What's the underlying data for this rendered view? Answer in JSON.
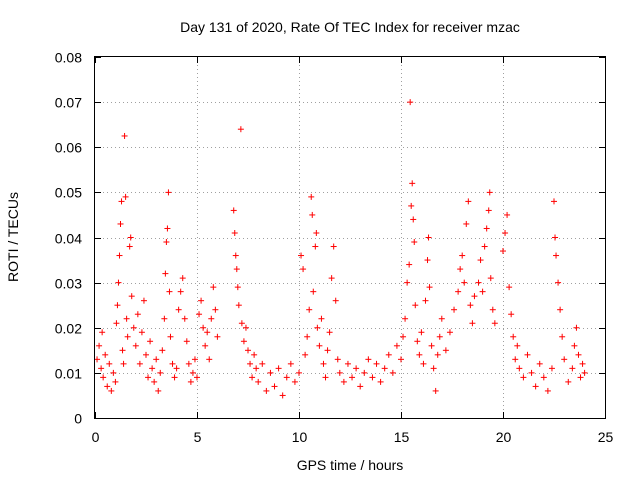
{
  "chart_data": {
    "type": "scatter",
    "title": "Day 131 of 2020, Rate Of TEC Index for receiver mzac",
    "xlabel": "GPS time / hours",
    "ylabel": "ROTI / TECUs",
    "xlim": [
      0,
      25
    ],
    "ylim": [
      0,
      0.08
    ],
    "xticks": [
      "0",
      "5",
      "10",
      "15",
      "20",
      "25"
    ],
    "yticks": [
      "0",
      "0.01",
      "0.02",
      "0.03",
      "0.04",
      "0.05",
      "0.06",
      "0.07",
      "0.08"
    ],
    "grid": true,
    "marker": "+",
    "color": "#ff0000",
    "series": [
      {
        "name": "ROTI",
        "points": [
          [
            0.1,
            0.013
          ],
          [
            0.2,
            0.016
          ],
          [
            0.3,
            0.011
          ],
          [
            0.35,
            0.019
          ],
          [
            0.4,
            0.009
          ],
          [
            0.5,
            0.014
          ],
          [
            0.6,
            0.007
          ],
          [
            0.7,
            0.012
          ],
          [
            0.8,
            0.006
          ],
          [
            0.9,
            0.01
          ],
          [
            1.0,
            0.008
          ],
          [
            1.05,
            0.021
          ],
          [
            1.1,
            0.025
          ],
          [
            1.15,
            0.03
          ],
          [
            1.2,
            0.036
          ],
          [
            1.25,
            0.043
          ],
          [
            1.3,
            0.048
          ],
          [
            1.35,
            0.015
          ],
          [
            1.4,
            0.012
          ],
          [
            1.45,
            0.0625
          ],
          [
            1.5,
            0.049
          ],
          [
            1.55,
            0.022
          ],
          [
            1.6,
            0.018
          ],
          [
            1.7,
            0.038
          ],
          [
            1.75,
            0.04
          ],
          [
            1.8,
            0.027
          ],
          [
            1.9,
            0.02
          ],
          [
            2.0,
            0.016
          ],
          [
            2.1,
            0.023
          ],
          [
            2.2,
            0.012
          ],
          [
            2.3,
            0.019
          ],
          [
            2.4,
            0.026
          ],
          [
            2.5,
            0.014
          ],
          [
            2.6,
            0.009
          ],
          [
            2.7,
            0.017
          ],
          [
            2.8,
            0.011
          ],
          [
            2.9,
            0.008
          ],
          [
            3.0,
            0.013
          ],
          [
            3.1,
            0.006
          ],
          [
            3.2,
            0.01
          ],
          [
            3.3,
            0.015
          ],
          [
            3.4,
            0.022
          ],
          [
            3.45,
            0.032
          ],
          [
            3.5,
            0.039
          ],
          [
            3.55,
            0.042
          ],
          [
            3.6,
            0.05
          ],
          [
            3.65,
            0.028
          ],
          [
            3.7,
            0.018
          ],
          [
            3.8,
            0.012
          ],
          [
            3.9,
            0.009
          ],
          [
            4.0,
            0.011
          ],
          [
            4.1,
            0.024
          ],
          [
            4.2,
            0.028
          ],
          [
            4.3,
            0.031
          ],
          [
            4.4,
            0.022
          ],
          [
            4.5,
            0.017
          ],
          [
            4.6,
            0.012
          ],
          [
            4.7,
            0.008
          ],
          [
            4.8,
            0.01
          ],
          [
            4.9,
            0.013
          ],
          [
            5.0,
            0.009
          ],
          [
            5.1,
            0.023
          ],
          [
            5.2,
            0.026
          ],
          [
            5.3,
            0.02
          ],
          [
            5.4,
            0.016
          ],
          [
            5.5,
            0.019
          ],
          [
            5.6,
            0.013
          ],
          [
            5.7,
            0.022
          ],
          [
            5.8,
            0.029
          ],
          [
            5.9,
            0.024
          ],
          [
            6.0,
            0.018
          ],
          [
            6.8,
            0.046
          ],
          [
            6.85,
            0.041
          ],
          [
            6.9,
            0.036
          ],
          [
            6.95,
            0.033
          ],
          [
            7.0,
            0.029
          ],
          [
            7.05,
            0.025
          ],
          [
            7.15,
            0.064
          ],
          [
            7.2,
            0.021
          ],
          [
            7.3,
            0.017
          ],
          [
            7.4,
            0.02
          ],
          [
            7.5,
            0.015
          ],
          [
            7.6,
            0.012
          ],
          [
            7.7,
            0.009
          ],
          [
            7.8,
            0.014
          ],
          [
            7.9,
            0.011
          ],
          [
            8.0,
            0.008
          ],
          [
            8.2,
            0.012
          ],
          [
            8.4,
            0.006
          ],
          [
            8.6,
            0.01
          ],
          [
            8.8,
            0.007
          ],
          [
            9.0,
            0.011
          ],
          [
            9.2,
            0.005
          ],
          [
            9.4,
            0.009
          ],
          [
            9.6,
            0.012
          ],
          [
            9.8,
            0.008
          ],
          [
            10.0,
            0.01
          ],
          [
            10.1,
            0.036
          ],
          [
            10.2,
            0.033
          ],
          [
            10.3,
            0.014
          ],
          [
            10.4,
            0.018
          ],
          [
            10.5,
            0.024
          ],
          [
            10.6,
            0.049
          ],
          [
            10.65,
            0.045
          ],
          [
            10.7,
            0.028
          ],
          [
            10.8,
            0.038
          ],
          [
            10.85,
            0.041
          ],
          [
            10.9,
            0.02
          ],
          [
            11.0,
            0.016
          ],
          [
            11.1,
            0.022
          ],
          [
            11.2,
            0.012
          ],
          [
            11.3,
            0.009
          ],
          [
            11.4,
            0.015
          ],
          [
            11.5,
            0.019
          ],
          [
            11.6,
            0.031
          ],
          [
            11.7,
            0.038
          ],
          [
            11.8,
            0.026
          ],
          [
            11.9,
            0.013
          ],
          [
            12.0,
            0.01
          ],
          [
            12.2,
            0.008
          ],
          [
            12.4,
            0.012
          ],
          [
            12.6,
            0.009
          ],
          [
            12.8,
            0.011
          ],
          [
            13.0,
            0.007
          ],
          [
            13.2,
            0.01
          ],
          [
            13.4,
            0.013
          ],
          [
            13.6,
            0.009
          ],
          [
            13.8,
            0.012
          ],
          [
            14.0,
            0.008
          ],
          [
            14.2,
            0.011
          ],
          [
            14.4,
            0.014
          ],
          [
            14.6,
            0.01
          ],
          [
            14.8,
            0.016
          ],
          [
            15.0,
            0.013
          ],
          [
            15.1,
            0.018
          ],
          [
            15.2,
            0.022
          ],
          [
            15.3,
            0.03
          ],
          [
            15.4,
            0.034
          ],
          [
            15.45,
            0.07
          ],
          [
            15.5,
            0.047
          ],
          [
            15.55,
            0.052
          ],
          [
            15.6,
            0.044
          ],
          [
            15.65,
            0.039
          ],
          [
            15.7,
            0.025
          ],
          [
            15.8,
            0.017
          ],
          [
            15.9,
            0.014
          ],
          [
            16.0,
            0.019
          ],
          [
            16.1,
            0.012
          ],
          [
            16.2,
            0.026
          ],
          [
            16.3,
            0.035
          ],
          [
            16.35,
            0.04
          ],
          [
            16.4,
            0.029
          ],
          [
            16.5,
            0.016
          ],
          [
            16.6,
            0.011
          ],
          [
            16.7,
            0.006
          ],
          [
            16.8,
            0.014
          ],
          [
            16.9,
            0.018
          ],
          [
            17.0,
            0.022
          ],
          [
            17.2,
            0.015
          ],
          [
            17.4,
            0.019
          ],
          [
            17.6,
            0.024
          ],
          [
            17.8,
            0.028
          ],
          [
            17.9,
            0.033
          ],
          [
            18.0,
            0.036
          ],
          [
            18.1,
            0.03
          ],
          [
            18.2,
            0.043
          ],
          [
            18.3,
            0.048
          ],
          [
            18.4,
            0.025
          ],
          [
            18.5,
            0.021
          ],
          [
            18.6,
            0.027
          ],
          [
            18.8,
            0.03
          ],
          [
            18.9,
            0.035
          ],
          [
            19.0,
            0.028
          ],
          [
            19.1,
            0.038
          ],
          [
            19.2,
            0.042
          ],
          [
            19.3,
            0.046
          ],
          [
            19.35,
            0.05
          ],
          [
            19.4,
            0.031
          ],
          [
            19.5,
            0.024
          ],
          [
            19.6,
            0.021
          ],
          [
            20.0,
            0.037
          ],
          [
            20.1,
            0.041
          ],
          [
            20.2,
            0.045
          ],
          [
            20.3,
            0.029
          ],
          [
            20.4,
            0.023
          ],
          [
            20.5,
            0.018
          ],
          [
            20.6,
            0.013
          ],
          [
            20.7,
            0.016
          ],
          [
            20.8,
            0.011
          ],
          [
            21.0,
            0.009
          ],
          [
            21.2,
            0.014
          ],
          [
            21.4,
            0.01
          ],
          [
            21.6,
            0.007
          ],
          [
            21.8,
            0.012
          ],
          [
            22.0,
            0.009
          ],
          [
            22.2,
            0.006
          ],
          [
            22.4,
            0.011
          ],
          [
            22.5,
            0.048
          ],
          [
            22.55,
            0.04
          ],
          [
            22.6,
            0.036
          ],
          [
            22.7,
            0.03
          ],
          [
            22.8,
            0.024
          ],
          [
            22.9,
            0.018
          ],
          [
            23.0,
            0.013
          ],
          [
            23.2,
            0.008
          ],
          [
            23.4,
            0.011
          ],
          [
            23.5,
            0.016
          ],
          [
            23.6,
            0.02
          ],
          [
            23.7,
            0.014
          ],
          [
            23.8,
            0.009
          ],
          [
            23.9,
            0.012
          ],
          [
            24.0,
            0.01
          ]
        ]
      }
    ]
  }
}
